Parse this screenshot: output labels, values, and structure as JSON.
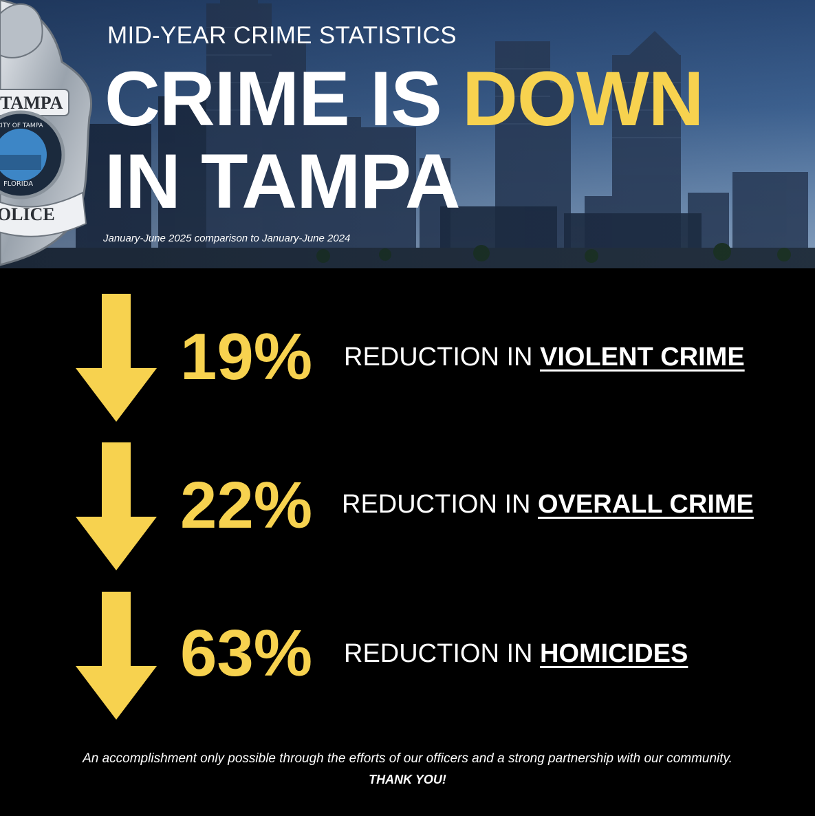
{
  "header": {
    "eyebrow": "MID-YEAR CRIME STATISTICS",
    "headline_part1": "CRIME IS ",
    "headline_highlight": "DOWN",
    "headline_line2": "IN TAMPA",
    "subtitle": "January-June 2025 comparison to January-June 2024"
  },
  "badge": {
    "top_text": "TAMPA",
    "inner_text": "CITY OF TAMPA",
    "lower_text": "FLORIDA",
    "bottom_text": "POLICE"
  },
  "stats": [
    {
      "percent": "19%",
      "prefix": "REDUCTION IN ",
      "subject": "VIOLENT CRIME"
    },
    {
      "percent": "22%",
      "prefix": "REDUCTION IN ",
      "subject": "OVERALL CRIME"
    },
    {
      "percent": "63%",
      "prefix": "REDUCTION IN ",
      "subject": "HOMICIDES"
    }
  ],
  "footer": {
    "message": "An accomplishment only possible through the efforts of our officers and a strong partnership with our community.",
    "thanks": "THANK YOU!"
  },
  "colors": {
    "accent_yellow": "#f7d24f",
    "background": "#000000",
    "text": "#ffffff"
  },
  "icons": {
    "badge": "police-badge-icon",
    "arrow": "arrow-down-icon"
  }
}
